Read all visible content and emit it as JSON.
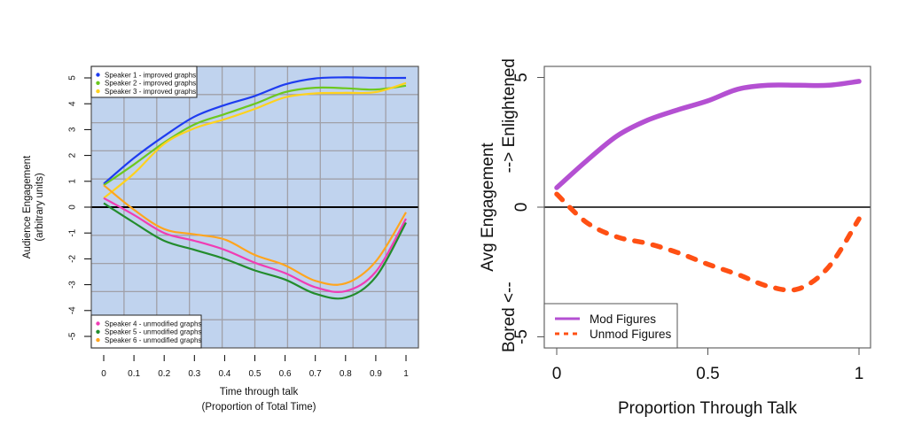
{
  "chart_data": [
    {
      "type": "line",
      "xlabel_line1": "Time through talk",
      "xlabel_line2": "(Proportion of Total Time)",
      "ylabel_line1": "Audience Engagement",
      "ylabel_line2": "(arbitrary units)",
      "xlim": [
        0,
        1
      ],
      "ylim": [
        -5,
        5
      ],
      "xticks": [
        "0",
        "0.1",
        "0.2",
        "0.3",
        "0.4",
        "0.5",
        "0.6",
        "0.7",
        "0.8",
        "0.9",
        "1"
      ],
      "yticks": [
        "-5",
        "-4",
        "-3",
        "-2",
        "-1",
        "0",
        "1",
        "2",
        "3",
        "4",
        "5"
      ],
      "grid": true,
      "background_color": "#c0d3ee",
      "grid_color": "#a0a0a8",
      "zero_line": true,
      "x": [
        0,
        0.1,
        0.2,
        0.3,
        0.4,
        0.5,
        0.6,
        0.7,
        0.8,
        0.9,
        1.0
      ],
      "series": [
        {
          "name": "Speaker 1 - improved graphs",
          "color": "#1e3cf0",
          "values": [
            0.9,
            1.9,
            2.75,
            3.5,
            3.95,
            4.3,
            4.75,
            4.98,
            5.02,
            5.0,
            5.0
          ]
        },
        {
          "name": "Speaker 2 - improved graphs",
          "color": "#6cc81e",
          "values": [
            0.85,
            1.65,
            2.5,
            3.2,
            3.6,
            4.0,
            4.45,
            4.62,
            4.6,
            4.55,
            4.7
          ]
        },
        {
          "name": "Speaker 3 - improved graphs",
          "color": "#ffd21e",
          "values": [
            0.35,
            1.3,
            2.45,
            3.05,
            3.4,
            3.8,
            4.25,
            4.4,
            4.42,
            4.45,
            4.8
          ]
        },
        {
          "name": "Speaker 4 - unmodified graphs",
          "color": "#f03cb4",
          "values": [
            0.35,
            -0.3,
            -1.0,
            -1.3,
            -1.65,
            -2.15,
            -2.55,
            -3.1,
            -3.25,
            -2.5,
            -0.45
          ]
        },
        {
          "name": "Speaker 5 - unmodified graphs",
          "color": "#238c2d",
          "values": [
            0.15,
            -0.6,
            -1.3,
            -1.65,
            -2.0,
            -2.45,
            -2.8,
            -3.35,
            -3.5,
            -2.7,
            -0.6
          ]
        },
        {
          "name": "Speaker 6 - unmodified graphs",
          "color": "#ffa51e",
          "values": [
            0.85,
            -0.1,
            -0.85,
            -1.05,
            -1.25,
            -1.85,
            -2.25,
            -2.85,
            -2.95,
            -2.1,
            -0.2
          ]
        }
      ],
      "legends": [
        {
          "placement": "top-left",
          "entries": [
            0,
            1,
            2
          ]
        },
        {
          "placement": "bottom-left",
          "entries": [
            3,
            4,
            5
          ]
        }
      ]
    },
    {
      "type": "line",
      "xlabel": "Proportion Through Talk",
      "ylabel_line1": "Avg Engagement",
      "ylabel_line2_left": "Bored <--",
      "ylabel_line2_right": "--> Enlightened",
      "xlim": [
        0,
        1
      ],
      "ylim": [
        -5,
        5
      ],
      "xticks": [
        "0",
        "0.5",
        "1"
      ],
      "xtick_values": [
        0,
        0.5,
        1
      ],
      "yticks": [
        "-5",
        "0",
        "5"
      ],
      "ytick_values": [
        -5,
        0,
        5
      ],
      "grid": false,
      "zero_line": true,
      "x": [
        0,
        0.1,
        0.2,
        0.3,
        0.4,
        0.5,
        0.6,
        0.7,
        0.8,
        0.9,
        1.0
      ],
      "series": [
        {
          "name": "Mod Figures",
          "color": "#b450d2",
          "style": "solid",
          "values": [
            0.75,
            1.8,
            2.75,
            3.35,
            3.75,
            4.1,
            4.55,
            4.7,
            4.7,
            4.7,
            4.85
          ]
        },
        {
          "name": "Unmod Figures",
          "color": "#ff5014",
          "style": "dashed",
          "values": [
            0.5,
            -0.6,
            -1.15,
            -1.4,
            -1.75,
            -2.2,
            -2.6,
            -3.05,
            -3.15,
            -2.3,
            -0.45
          ]
        }
      ],
      "legend": {
        "placement": "bottom-left"
      }
    }
  ]
}
